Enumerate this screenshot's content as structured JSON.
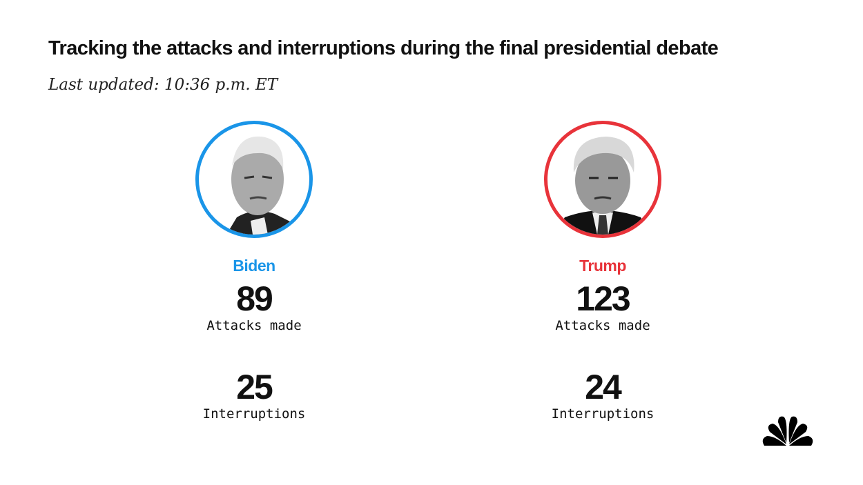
{
  "header": {
    "title": "Tracking the attacks and interruptions during the final presidential debate",
    "updated": "Last updated: 10:36 p.m. ET"
  },
  "candidates": [
    {
      "name": "Biden",
      "color": "#1a95e8",
      "attacks": "89",
      "attacks_label": "Attacks made",
      "interruptions": "25",
      "interruptions_label": "Interruptions"
    },
    {
      "name": "Trump",
      "color": "#e8333a",
      "attacks": "123",
      "attacks_label": "Attacks made",
      "interruptions": "24",
      "interruptions_label": "Interruptions"
    }
  ],
  "logo": {
    "icon": "nbc-peacock-icon"
  }
}
